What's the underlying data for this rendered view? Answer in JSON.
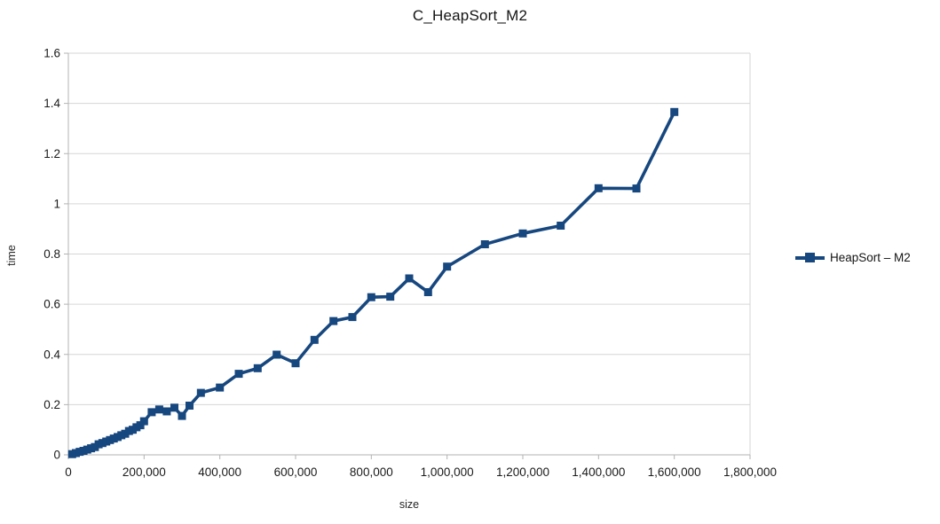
{
  "title": "C_HeapSort_M2",
  "legend": {
    "label": "HeapSort – M2"
  },
  "colors": {
    "series": "#17477f",
    "grid": "#d6d6d6",
    "axis": "#b3b3b3",
    "tick_text": "#1a1a1a"
  },
  "chart_data": {
    "type": "line",
    "title": "C_HeapSort_M2",
    "xlabel": "size",
    "ylabel": "time",
    "xlim": [
      0,
      1800000
    ],
    "ylim": [
      0,
      1.6
    ],
    "x_ticks": [
      0,
      200000,
      400000,
      600000,
      800000,
      1000000,
      1200000,
      1400000,
      1600000,
      1800000
    ],
    "x_tick_labels": [
      "0",
      "200,000",
      "400,000",
      "600,000",
      "800,000",
      "1,000,000",
      "1,200,000",
      "1,400,000",
      "1,600,000",
      "1,800,000"
    ],
    "y_ticks": [
      0,
      0.2,
      0.4,
      0.6,
      0.8,
      1.0,
      1.2,
      1.4,
      1.6
    ],
    "y_tick_labels": [
      "0",
      "0.2",
      "0.4",
      "0.6",
      "0.8",
      "1",
      "1.2",
      "1.4",
      "1.6"
    ],
    "grid": "horizontal",
    "legend_position": "right",
    "marker": "square",
    "series": [
      {
        "name": "HeapSort – M2",
        "x": [
          10000,
          20000,
          30000,
          40000,
          50000,
          60000,
          70000,
          80000,
          90000,
          100000,
          110000,
          120000,
          130000,
          140000,
          150000,
          160000,
          170000,
          180000,
          190000,
          200000,
          220000,
          240000,
          260000,
          280000,
          300000,
          320000,
          350000,
          400000,
          450000,
          500000,
          550000,
          600000,
          650000,
          700000,
          750000,
          800000,
          850000,
          900000,
          950000,
          1000000,
          1100000,
          1200000,
          1300000,
          1400000,
          1500000,
          1600000
        ],
        "y": [
          0.003,
          0.007,
          0.012,
          0.016,
          0.021,
          0.026,
          0.031,
          0.042,
          0.047,
          0.053,
          0.059,
          0.065,
          0.071,
          0.078,
          0.084,
          0.095,
          0.1,
          0.11,
          0.118,
          0.134,
          0.17,
          0.181,
          0.173,
          0.188,
          0.155,
          0.196,
          0.247,
          0.268,
          0.323,
          0.345,
          0.399,
          0.365,
          0.458,
          0.533,
          0.549,
          0.628,
          0.63,
          0.703,
          0.648,
          0.75,
          0.839,
          0.882,
          0.913,
          1.062,
          1.061,
          1.366
        ]
      }
    ]
  }
}
